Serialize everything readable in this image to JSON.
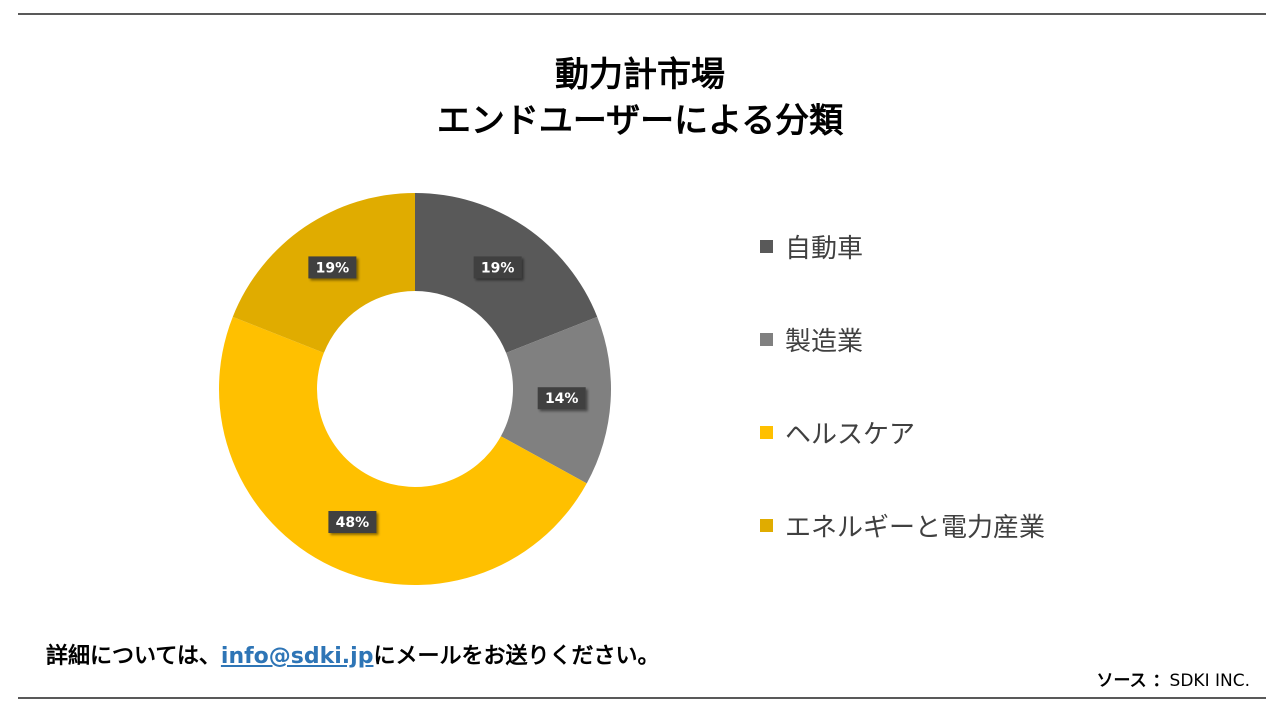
{
  "title_lines": [
    "動力計市場",
    "エンドユーザーによる分類"
  ],
  "chart_data": {
    "type": "pie",
    "donut": true,
    "title": "動力計市場 エンドユーザーによる分類",
    "legend_position": "right",
    "slices": [
      {
        "label": "自動車",
        "value": 19,
        "display": "19%",
        "color": "#595959"
      },
      {
        "label": "製造業",
        "value": 14,
        "display": "14%",
        "color": "#808080"
      },
      {
        "label": "ヘルスケア",
        "value": 48,
        "display": "48%",
        "color": "#ffc000"
      },
      {
        "label": "エネルギーと電力産業",
        "value": 19,
        "display": "19%",
        "color": "#e0ac00"
      }
    ]
  },
  "footer": {
    "note_prefix": "詳細については、",
    "email": "info@sdki.jp",
    "note_suffix": "にメールをお送りください。",
    "source_label": "ソース ：",
    "source_value": "SDKI INC."
  }
}
